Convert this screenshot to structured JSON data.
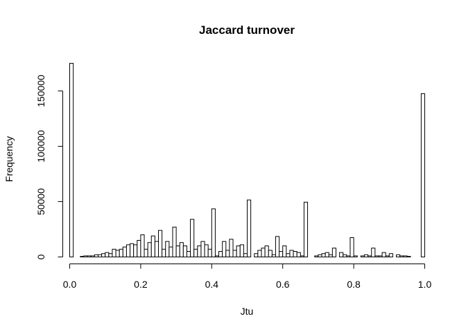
{
  "chart_data": {
    "type": "bar",
    "title": "Jaccard turnover",
    "xlabel": "Jtu",
    "ylabel": "Frequency",
    "xlim": [
      0,
      1
    ],
    "ylim": [
      0,
      175000
    ],
    "x_ticks": [
      "0.0",
      "0.2",
      "0.4",
      "0.6",
      "0.8",
      "1.0"
    ],
    "y_ticks": [
      "0",
      "50000",
      "100000",
      "150000"
    ],
    "bin_width": 0.01,
    "bins_start": 0,
    "values": [
      175000,
      0,
      0,
      500,
      1000,
      1000,
      1000,
      2000,
      2000,
      3000,
      4000,
      3000,
      7000,
      6000,
      7000,
      9000,
      11000,
      12000,
      11000,
      15000,
      20000,
      7000,
      13000,
      19000,
      14000,
      24000,
      7000,
      14000,
      9000,
      27000,
      10000,
      13000,
      10000,
      5000,
      34000,
      7000,
      10000,
      14000,
      11000,
      7000,
      43500,
      1000,
      5000,
      14000,
      6000,
      16000,
      6000,
      10000,
      11000,
      3000,
      51500,
      0,
      3000,
      6000,
      8000,
      10000,
      6000,
      2000,
      18500,
      5000,
      10000,
      3000,
      6000,
      5000,
      4000,
      1000,
      49500,
      0,
      0,
      1000,
      2000,
      3000,
      4000,
      2000,
      8000,
      0,
      4000,
      2000,
      1000,
      17500,
      1000,
      0,
      1000,
      2000,
      1000,
      8000,
      1000,
      1000,
      4000,
      1000,
      3000,
      0,
      2000,
      1000,
      1000,
      500,
      0,
      0,
      0,
      147500
    ],
    "grid": false,
    "legend": "none"
  }
}
